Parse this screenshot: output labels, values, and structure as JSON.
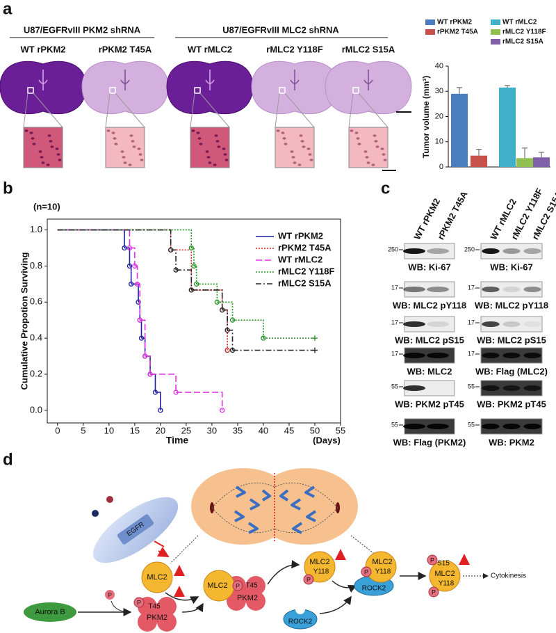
{
  "panel_labels": [
    "a",
    "b",
    "c",
    "d"
  ],
  "panel_a": {
    "groups": [
      "U87/EGFRvIII   PKM2 shRNA",
      "U87/EGFRvIII   MLC2 shRNA"
    ],
    "samples": [
      "WT rPKM2",
      "rPKM2 T45A",
      "WT rMLC2",
      "rMLC2 Y118F",
      "rMLC2 S15A"
    ]
  },
  "chart_data": [
    {
      "type": "bar",
      "ylabel": "Tumor volume (mm³)",
      "series": [
        {
          "name": "WT rPKM2",
          "color": "#4a7cc0",
          "values": [
            29
          ],
          "errors": [
            2.5
          ]
        },
        {
          "name": "rPKM2 T45A",
          "color": "#c8504a",
          "values": [
            4.5
          ],
          "errors": [
            2.5
          ]
        },
        {
          "name": "WT rMLC2",
          "color": "#3fb0c8",
          "values": [
            31.5
          ],
          "errors": [
            0.8
          ]
        },
        {
          "name": "rMLC2 Y118F",
          "color": "#92c050",
          "values": [
            3.5
          ],
          "errors": [
            4
          ]
        },
        {
          "name": "rMLC2 S15A",
          "color": "#8060a8",
          "values": [
            3.8
          ],
          "errors": [
            2
          ]
        }
      ],
      "ylim": [
        0,
        40
      ],
      "yticks": [
        0,
        10,
        20,
        30,
        40
      ]
    },
    {
      "type": "step",
      "title": "(n=10)",
      "xlabel": "Time",
      "xlabel_unit": "(Days)",
      "ylabel": "Cumulative Propotion Surviving",
      "series": [
        {
          "name": "WT rPKM2",
          "color": "#1f1f9f",
          "dash": "none",
          "end_marker": "circle",
          "x": [
            0,
            13,
            14,
            14.3,
            15.7,
            16,
            16.3,
            17,
            18,
            19,
            20
          ],
          "values": [
            1,
            0.9,
            0.8,
            0.7,
            0.6,
            0.5,
            0.4,
            0.3,
            0.2,
            0.1,
            0
          ]
        },
        {
          "name": "rPKM2 T45A",
          "color": "#d02020",
          "dash": "2,2",
          "end_marker": "circle",
          "x": [
            0,
            22,
            26,
            32,
            33
          ],
          "values": [
            1,
            0.889,
            0.667,
            0.556,
            0.333
          ]
        },
        {
          "name": "WT rMLC2",
          "color": "#e030e0",
          "dash": "9,4",
          "end_marker": "circle",
          "x": [
            0,
            14,
            15,
            15.5,
            16,
            17,
            18,
            23,
            32
          ],
          "values": [
            1,
            0.9,
            0.8,
            0.7,
            0.5,
            0.3,
            0.2,
            0.1,
            0
          ]
        },
        {
          "name": "rMLC2 Y118F",
          "color": "#209020",
          "dash": "2,2",
          "end_marker": "plus",
          "x": [
            0,
            26,
            26.5,
            27,
            31,
            34,
            40,
            50
          ],
          "values": [
            1,
            0.9,
            0.8,
            0.7,
            0.6,
            0.5,
            0.4,
            0.4
          ]
        },
        {
          "name": "rMLC2 S15A",
          "color": "#222222",
          "dash": "8,3,2,3",
          "end_marker": "plus",
          "x": [
            0,
            22,
            23,
            26,
            32,
            33,
            34,
            50
          ],
          "values": [
            1,
            0.889,
            0.778,
            0.667,
            0.556,
            0.444,
            0.333,
            0.333
          ]
        }
      ],
      "xlim": [
        -2,
        55
      ],
      "xticks": [
        0,
        5,
        10,
        15,
        20,
        25,
        30,
        35,
        40,
        45,
        50,
        55
      ],
      "ylim": [
        -0.07,
        1.06
      ],
      "yticks": [
        {
          "value": 0,
          "label": "0.0"
        },
        {
          "value": 0.2,
          "label": "0.2"
        },
        {
          "value": 0.4,
          "label": "0.4"
        },
        {
          "value": 0.6,
          "label": "0.6"
        },
        {
          "value": 0.8,
          "label": "0.8"
        },
        {
          "value": 1,
          "label": "1.0"
        }
      ]
    }
  ],
  "panel_c": {
    "left": {
      "lanes": [
        "WT rPKM2",
        "rPKM2 T45A"
      ],
      "blots": [
        {
          "marker": "250",
          "label": "WB: Ki-67"
        },
        {
          "marker": "17",
          "label": "WB: MLC2 pY118"
        },
        {
          "marker": "17",
          "label": "WB: MLC2 pS15"
        },
        {
          "marker": "17",
          "label": "WB: MLC2"
        },
        {
          "marker": "55",
          "label": "WB: PKM2 pT45"
        },
        {
          "marker": "55",
          "label": "WB: Flag (PKM2)"
        }
      ]
    },
    "right": {
      "lanes": [
        "WT rMLC2",
        "rMLC2 Y118F",
        "rMLC2 S15A"
      ],
      "blots": [
        {
          "marker": "250",
          "label": "WB: Ki-67"
        },
        {
          "marker": "17",
          "label": "WB: MLC2 pY118"
        },
        {
          "marker": "17",
          "label": "WB: MLC2 pS15"
        },
        {
          "marker": "17",
          "label": "WB: Flag (MLC2)"
        },
        {
          "marker": "55",
          "label": "WB: PKM2 pT45"
        },
        {
          "marker": "55",
          "label": "WB: PKM2"
        }
      ]
    }
  },
  "panel_d": {
    "labels": [
      "EGFR",
      "MLC2",
      "P",
      "Aurora B",
      "P",
      "T45",
      "PKM2",
      "MLC2",
      "P",
      "T45",
      "PKM2",
      "MLC2",
      "Y118",
      "MLC2",
      "Y118",
      "ROCK2",
      "ROCK2",
      "P",
      "S15",
      "MLC2",
      "Y118",
      "P",
      "Cytokinesis",
      "P",
      "P"
    ]
  }
}
